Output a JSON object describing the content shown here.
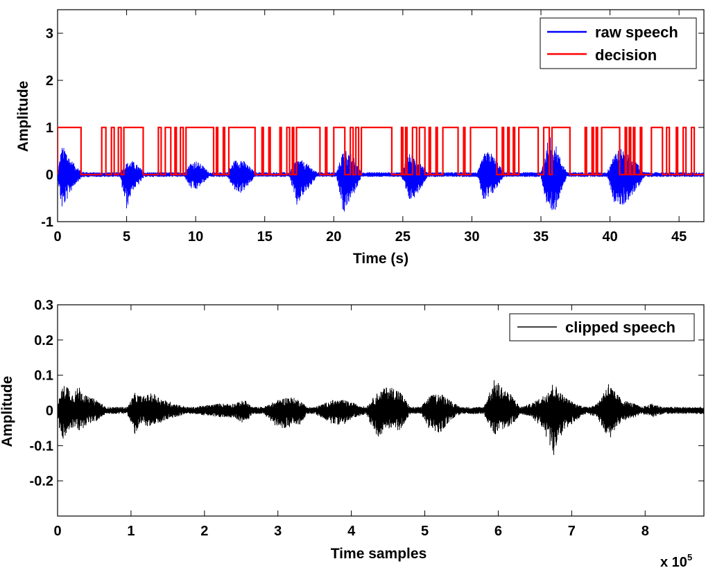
{
  "chart_data": [
    {
      "type": "line",
      "xlabel": "Time (s)",
      "ylabel": "Amplitude",
      "xlim": [
        0,
        46.8
      ],
      "ylim": [
        -1,
        3.5
      ],
      "grid": false,
      "legend_position": "top-right",
      "xticks": [
        0,
        5,
        10,
        15,
        20,
        25,
        30,
        35,
        40,
        45
      ],
      "xtick_labels": [
        "0",
        "5",
        "10",
        "15",
        "20",
        "25",
        "30",
        "35",
        "40",
        "45"
      ],
      "yticks": [
        -1,
        0,
        1,
        2,
        3
      ],
      "ytick_labels": [
        "-1",
        "0",
        "1",
        "2",
        "3"
      ],
      "series": [
        {
          "name": "raw speech",
          "color": "#0000ff",
          "kind": "waveform",
          "baseline": 0,
          "envelope_x": [
            0,
            0.3,
            0.6,
            0.9,
            1.3,
            1.8,
            2.5,
            4.5,
            5.0,
            5.4,
            5.8,
            6.3,
            9.2,
            9.6,
            10.0,
            10.5,
            11.0,
            12.3,
            12.8,
            13.3,
            13.8,
            14.3,
            16.8,
            17.3,
            17.7,
            18.2,
            18.8,
            20.2,
            20.7,
            21.1,
            21.5,
            22.0,
            24.9,
            25.4,
            25.8,
            26.3,
            26.8,
            30.4,
            30.9,
            31.3,
            31.8,
            32.3,
            35.0,
            35.6,
            36.0,
            36.4,
            36.9,
            39.8,
            40.3,
            40.9,
            41.3,
            41.9,
            42.5,
            46.8
          ],
          "envelope_max": [
            0.05,
            0.6,
            0.55,
            0.35,
            0.2,
            0.06,
            0.05,
            0.05,
            0.25,
            0.3,
            0.2,
            0.05,
            0.05,
            0.25,
            0.3,
            0.2,
            0.05,
            0.05,
            0.3,
            0.35,
            0.2,
            0.05,
            0.05,
            0.35,
            0.3,
            0.2,
            0.05,
            0.05,
            0.55,
            0.5,
            0.35,
            0.05,
            0.05,
            0.45,
            0.4,
            0.25,
            0.05,
            0.05,
            0.45,
            0.5,
            0.3,
            0.05,
            0.05,
            0.85,
            0.7,
            0.35,
            0.05,
            0.05,
            0.5,
            0.55,
            0.45,
            0.3,
            0.05,
            0.05
          ],
          "envelope_min": [
            -0.05,
            -0.75,
            -0.6,
            -0.4,
            -0.2,
            -0.06,
            -0.05,
            -0.05,
            -0.75,
            -0.35,
            -0.25,
            -0.05,
            -0.05,
            -0.3,
            -0.35,
            -0.2,
            -0.05,
            -0.05,
            -0.35,
            -0.4,
            -0.25,
            -0.05,
            -0.05,
            -0.7,
            -0.5,
            -0.3,
            -0.05,
            -0.05,
            -0.85,
            -0.6,
            -0.4,
            -0.05,
            -0.05,
            -0.6,
            -0.5,
            -0.3,
            -0.05,
            -0.05,
            -0.65,
            -0.5,
            -0.3,
            -0.05,
            -0.05,
            -1.0,
            -0.85,
            -0.4,
            -0.05,
            -0.05,
            -0.6,
            -0.7,
            -0.55,
            -0.35,
            -0.05,
            -0.05
          ]
        },
        {
          "name": "decision",
          "color": "#ff0000",
          "kind": "binary",
          "on_intervals": [
            [
              0,
              1.7
            ],
            [
              3.2,
              3.5
            ],
            [
              3.9,
              4.1
            ],
            [
              4.4,
              4.6
            ],
            [
              4.8,
              6.2
            ],
            [
              7.3,
              7.5
            ],
            [
              7.8,
              8.2
            ],
            [
              8.5,
              8.6
            ],
            [
              8.9,
              9.1
            ],
            [
              9.3,
              11.3
            ],
            [
              11.5,
              11.6
            ],
            [
              12.0,
              12.1
            ],
            [
              12.4,
              14.3
            ],
            [
              14.8,
              14.9
            ],
            [
              15.3,
              15.4
            ],
            [
              16.1,
              16.2
            ],
            [
              16.6,
              16.8
            ],
            [
              17.0,
              17.1
            ],
            [
              17.3,
              19.0
            ],
            [
              19.4,
              19.5
            ],
            [
              20.0,
              20.8
            ],
            [
              21.2,
              21.4
            ],
            [
              21.6,
              21.8
            ],
            [
              22.0,
              24.2
            ],
            [
              24.9,
              25.0
            ],
            [
              25.2,
              25.3
            ],
            [
              25.7,
              26.0
            ],
            [
              26.2,
              26.6
            ],
            [
              26.9,
              27.0
            ],
            [
              27.4,
              27.5
            ],
            [
              27.9,
              29.0
            ],
            [
              29.4,
              29.5
            ],
            [
              29.9,
              31.8
            ],
            [
              32.2,
              32.3
            ],
            [
              32.6,
              32.7
            ],
            [
              33.0,
              33.1
            ],
            [
              33.4,
              34.8
            ],
            [
              35.2,
              35.6
            ],
            [
              35.8,
              37.1
            ],
            [
              38.2,
              38.3
            ],
            [
              38.7,
              38.8
            ],
            [
              39.0,
              39.1
            ],
            [
              39.4,
              40.7
            ],
            [
              41.1,
              41.2
            ],
            [
              41.4,
              41.5
            ],
            [
              41.7,
              41.8
            ],
            [
              42.2,
              42.3
            ],
            [
              43.0,
              43.8
            ],
            [
              44.1,
              44.3
            ],
            [
              44.8,
              44.9
            ],
            [
              45.3,
              45.5
            ],
            [
              45.9,
              46.1
            ]
          ]
        }
      ]
    },
    {
      "type": "line",
      "xlabel": "Time samples",
      "ylabel": "Amplitude",
      "x_multiplier_label": "x 10",
      "x_multiplier_exponent": "5",
      "xlim": [
        0,
        8.8
      ],
      "ylim": [
        -0.3,
        0.3
      ],
      "grid": false,
      "legend_position": "top-right",
      "xticks": [
        0,
        1,
        2,
        3,
        4,
        5,
        6,
        7,
        8
      ],
      "xtick_labels": [
        "0",
        "1",
        "2",
        "3",
        "4",
        "5",
        "6",
        "7",
        "8"
      ],
      "yticks": [
        -0.2,
        -0.1,
        0,
        0.1,
        0.2,
        0.3
      ],
      "ytick_labels": [
        "-0.2",
        "-0.1",
        "0",
        "0.1",
        "0.2",
        "0.3"
      ],
      "series": [
        {
          "name": "clipped speech",
          "color": "#000000",
          "kind": "waveform",
          "baseline": 0,
          "envelope_x": [
            0,
            0.05,
            0.12,
            0.2,
            0.3,
            0.4,
            0.55,
            0.65,
            0.95,
            1.05,
            1.15,
            1.3,
            1.45,
            1.6,
            1.75,
            1.85,
            2.2,
            2.4,
            2.55,
            2.65,
            2.8,
            3.0,
            3.15,
            3.3,
            3.4,
            3.5,
            3.75,
            3.9,
            4.05,
            4.2,
            4.35,
            4.5,
            4.65,
            4.8,
            4.95,
            5.05,
            5.2,
            5.3,
            5.4,
            5.5,
            5.8,
            5.95,
            6.1,
            6.2,
            6.3,
            6.45,
            6.6,
            6.75,
            6.9,
            7.05,
            7.2,
            7.35,
            7.5,
            7.6,
            7.7,
            7.85,
            7.95,
            8.1,
            8.25,
            8.8
          ],
          "envelope_max": [
            0.01,
            0.06,
            0.08,
            0.05,
            0.07,
            0.04,
            0.03,
            0.01,
            0.01,
            0.05,
            0.04,
            0.05,
            0.03,
            0.02,
            0.01,
            0.01,
            0.02,
            0.02,
            0.03,
            0.01,
            0.01,
            0.03,
            0.04,
            0.03,
            0.01,
            0.01,
            0.03,
            0.03,
            0.02,
            0.01,
            0.05,
            0.07,
            0.06,
            0.01,
            0.01,
            0.04,
            0.05,
            0.04,
            0.02,
            0.01,
            0.01,
            0.09,
            0.06,
            0.04,
            0.01,
            0.02,
            0.04,
            0.08,
            0.04,
            0.02,
            0.01,
            0.02,
            0.08,
            0.05,
            0.03,
            0.02,
            0.01,
            0.02,
            0.01,
            0.01
          ],
          "envelope_min": [
            -0.01,
            -0.1,
            -0.07,
            -0.05,
            -0.06,
            -0.04,
            -0.03,
            -0.01,
            -0.01,
            -0.07,
            -0.04,
            -0.05,
            -0.03,
            -0.02,
            -0.01,
            -0.01,
            -0.02,
            -0.02,
            -0.04,
            -0.01,
            -0.01,
            -0.05,
            -0.05,
            -0.04,
            -0.01,
            -0.01,
            -0.04,
            -0.04,
            -0.02,
            -0.01,
            -0.08,
            -0.05,
            -0.06,
            -0.01,
            -0.01,
            -0.05,
            -0.07,
            -0.04,
            -0.02,
            -0.01,
            -0.01,
            -0.07,
            -0.05,
            -0.04,
            -0.01,
            -0.02,
            -0.05,
            -0.13,
            -0.06,
            -0.03,
            -0.01,
            -0.02,
            -0.09,
            -0.05,
            -0.03,
            -0.02,
            -0.01,
            -0.02,
            -0.01,
            -0.01
          ]
        }
      ]
    }
  ]
}
